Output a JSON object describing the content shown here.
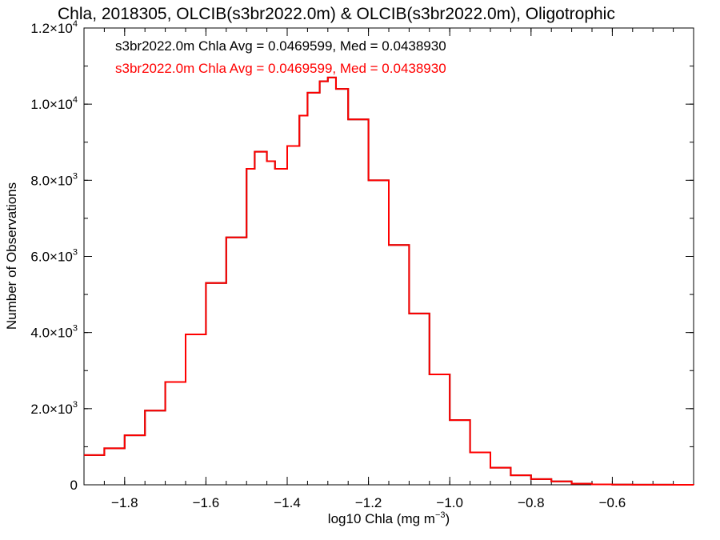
{
  "chart_data": {
    "type": "histogram-step",
    "title": "Chla, 2018305, OLCIB(s3br2022.0m) & OLCIB(s3br2022.0m), Oligotrophic",
    "xlabel": {
      "pre": "log10 Chla (mg m",
      "sup": "−3",
      "post": ")"
    },
    "ylabel": "Number of Observations",
    "xlim": [
      -1.9,
      -0.4
    ],
    "ylim": [
      0,
      12000
    ],
    "x_ticks": [
      {
        "v": -1.8,
        "label": "−1.8"
      },
      {
        "v": -1.6,
        "label": "−1.6"
      },
      {
        "v": -1.4,
        "label": "−1.4"
      },
      {
        "v": -1.2,
        "label": "−1.2"
      },
      {
        "v": -1.0,
        "label": "−1.0"
      },
      {
        "v": -0.8,
        "label": "−0.8"
      },
      {
        "v": -0.6,
        "label": "−0.6"
      }
    ],
    "y_ticks": [
      {
        "v": 0,
        "label": "0",
        "exp": ""
      },
      {
        "v": 2000,
        "label": "2.0×10",
        "exp": "3"
      },
      {
        "v": 4000,
        "label": "4.0×10",
        "exp": "3"
      },
      {
        "v": 6000,
        "label": "6.0×10",
        "exp": "3"
      },
      {
        "v": 8000,
        "label": "8.0×10",
        "exp": "3"
      },
      {
        "v": 10000,
        "label": "1.0×10",
        "exp": "4"
      },
      {
        "v": 12000,
        "label": "1.2×10",
        "exp": "4"
      }
    ],
    "x_minor_step": 0.05,
    "y_minor_step": 1000,
    "grid": false,
    "legend": [
      {
        "text": "s3br2022.0m Chla Avg = 0.0469599, Med = 0.0438930",
        "color": "#000000"
      },
      {
        "text": "s3br2022.0m Chla Avg = 0.0469599, Med = 0.0438930",
        "color": "#ff0000"
      }
    ],
    "series": [
      {
        "color": "#000000",
        "x": [
          -1.9,
          -1.85,
          -1.8,
          -1.75,
          -1.7,
          -1.65,
          -1.6,
          -1.55,
          -1.5,
          -1.48,
          -1.45,
          -1.43,
          -1.4,
          -1.37,
          -1.35,
          -1.32,
          -1.3,
          -1.28,
          -1.25,
          -1.2,
          -1.15,
          -1.1,
          -1.05,
          -1.0,
          -0.95,
          -0.9,
          -0.85,
          -0.8,
          -0.75,
          -0.7,
          -0.65,
          -0.6,
          -0.55,
          -0.5,
          -0.45,
          -0.4
        ],
        "values": [
          780,
          960,
          1300,
          1950,
          2700,
          3950,
          5300,
          6500,
          8300,
          8750,
          8500,
          8300,
          8900,
          9700,
          10300,
          10600,
          10700,
          10400,
          9600,
          8000,
          6300,
          4500,
          2900,
          1700,
          850,
          450,
          250,
          150,
          90,
          30,
          10,
          5,
          3,
          2,
          1,
          0
        ]
      },
      {
        "color": "#ff0000",
        "x": [
          -1.9,
          -1.85,
          -1.8,
          -1.75,
          -1.7,
          -1.65,
          -1.6,
          -1.55,
          -1.5,
          -1.48,
          -1.45,
          -1.43,
          -1.4,
          -1.37,
          -1.35,
          -1.32,
          -1.3,
          -1.28,
          -1.25,
          -1.2,
          -1.15,
          -1.1,
          -1.05,
          -1.0,
          -0.95,
          -0.9,
          -0.85,
          -0.8,
          -0.75,
          -0.7,
          -0.65,
          -0.6,
          -0.55,
          -0.5,
          -0.45,
          -0.4
        ],
        "values": [
          780,
          960,
          1300,
          1950,
          2700,
          3950,
          5300,
          6500,
          8300,
          8750,
          8500,
          8300,
          8900,
          9700,
          10300,
          10600,
          10700,
          10400,
          9600,
          8000,
          6300,
          4500,
          2900,
          1700,
          850,
          450,
          250,
          150,
          90,
          30,
          10,
          5,
          3,
          2,
          1,
          0
        ]
      }
    ]
  }
}
